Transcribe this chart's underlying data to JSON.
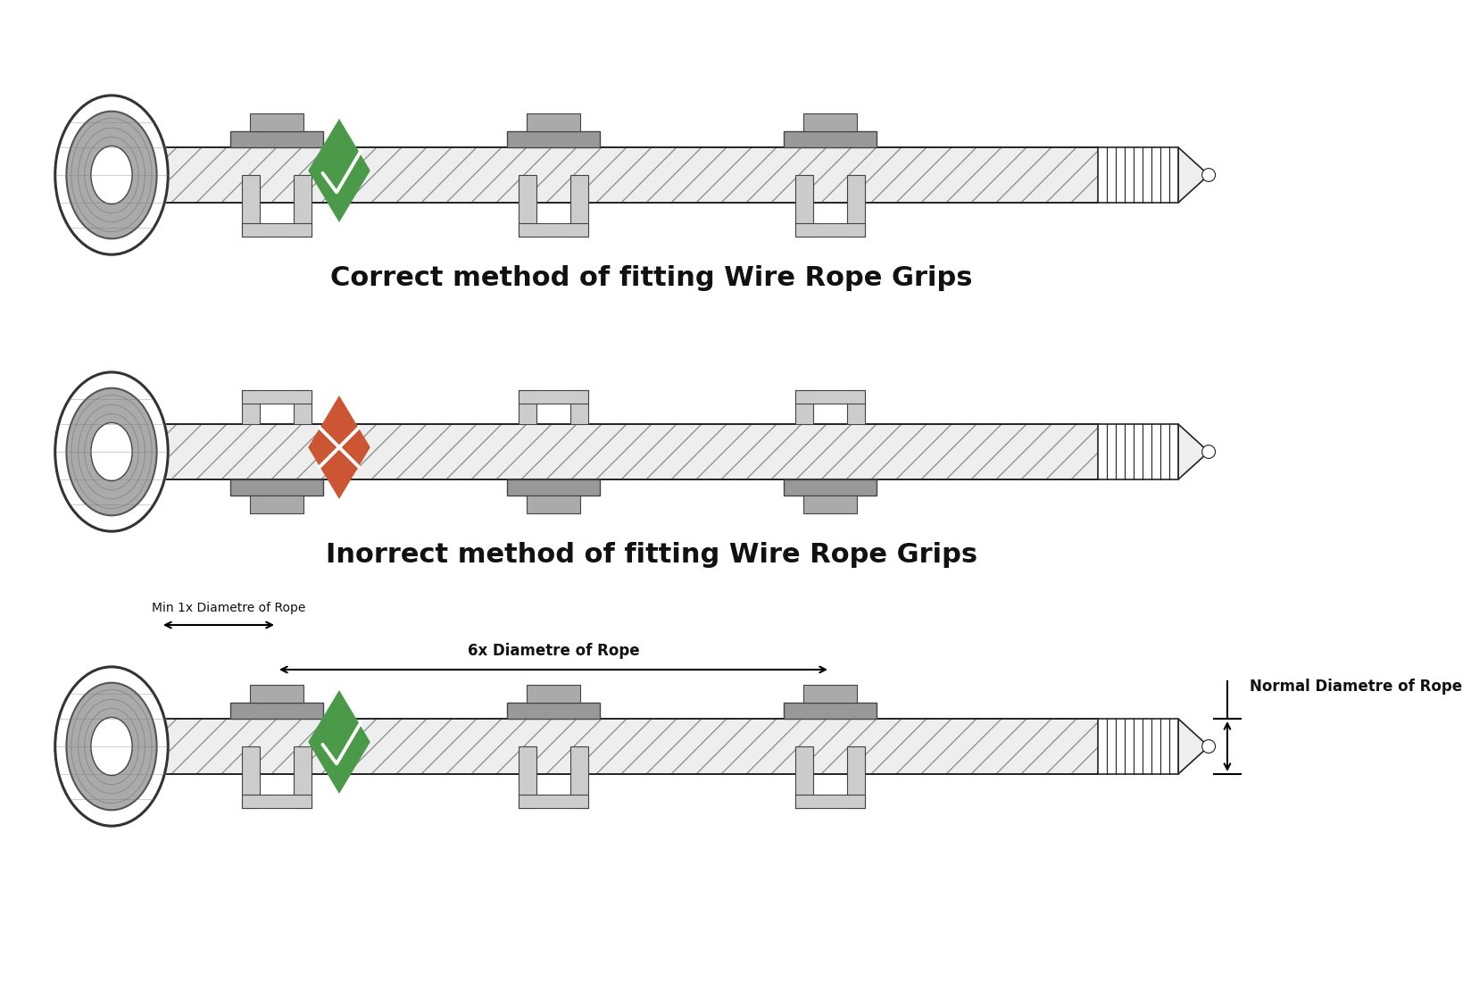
{
  "title1": "Correct method of fitting Wire Rope Grips",
  "title2": "Inorrect method of fitting Wire Rope Grips",
  "label_min": "Min 1x Diametre of Rope",
  "label_6x": "6x Diametre of Rope",
  "label_normal": "Normal Diametre of Rope",
  "bg_color": "#ffffff",
  "text_color": "#111111",
  "check_color": "#4a9a4a",
  "cross_color": "#cc5533",
  "rope_fill": "#eeeeee",
  "rope_hatch": "#888888",
  "rope_border": "#222222",
  "grip_saddle": "#999999",
  "grip_nut": "#aaaaaa",
  "grip_bolt": "#cccccc",
  "grip_edge": "#444444",
  "thimble_outer": "#888888",
  "thimble_inner": "#cccccc",
  "wire_dark": "#555555",
  "wire_light": "#dddddd"
}
